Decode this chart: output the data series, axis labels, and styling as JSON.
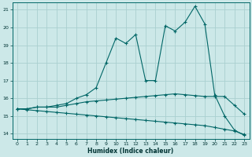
{
  "xlabel": "Humidex (Indice chaleur)",
  "bg_color": "#cce8e8",
  "grid_color": "#aad0d0",
  "line_color": "#006666",
  "xlim": [
    -0.5,
    23.5
  ],
  "ylim": [
    13.7,
    21.4
  ],
  "xticks": [
    0,
    1,
    2,
    3,
    4,
    5,
    6,
    7,
    8,
    9,
    10,
    11,
    12,
    13,
    14,
    15,
    16,
    17,
    18,
    19,
    20,
    21,
    22,
    23
  ],
  "yticks": [
    14,
    15,
    16,
    17,
    18,
    19,
    20,
    21
  ],
  "x": [
    0,
    1,
    2,
    3,
    4,
    5,
    6,
    7,
    8,
    9,
    10,
    11,
    12,
    13,
    14,
    15,
    16,
    17,
    18,
    19,
    20,
    21,
    22,
    23
  ],
  "y_main": [
    15.4,
    15.4,
    15.5,
    15.5,
    15.6,
    15.7,
    16.0,
    16.2,
    16.6,
    18.0,
    19.4,
    19.1,
    19.6,
    17.0,
    17.0,
    20.1,
    19.8,
    20.3,
    21.2,
    20.2,
    16.2,
    15.0,
    14.2,
    13.9
  ],
  "y_line2": [
    15.4,
    15.4,
    15.5,
    15.5,
    15.5,
    15.6,
    15.7,
    15.8,
    15.85,
    15.9,
    15.95,
    16.0,
    16.05,
    16.1,
    16.15,
    16.2,
    16.25,
    16.2,
    16.15,
    16.1,
    16.1,
    16.1,
    15.6,
    15.1
  ],
  "y_line3": [
    15.4,
    15.35,
    15.3,
    15.25,
    15.2,
    15.15,
    15.1,
    15.05,
    15.0,
    14.95,
    14.9,
    14.85,
    14.8,
    14.75,
    14.7,
    14.65,
    14.6,
    14.55,
    14.5,
    14.45,
    14.35,
    14.25,
    14.15,
    13.95
  ]
}
